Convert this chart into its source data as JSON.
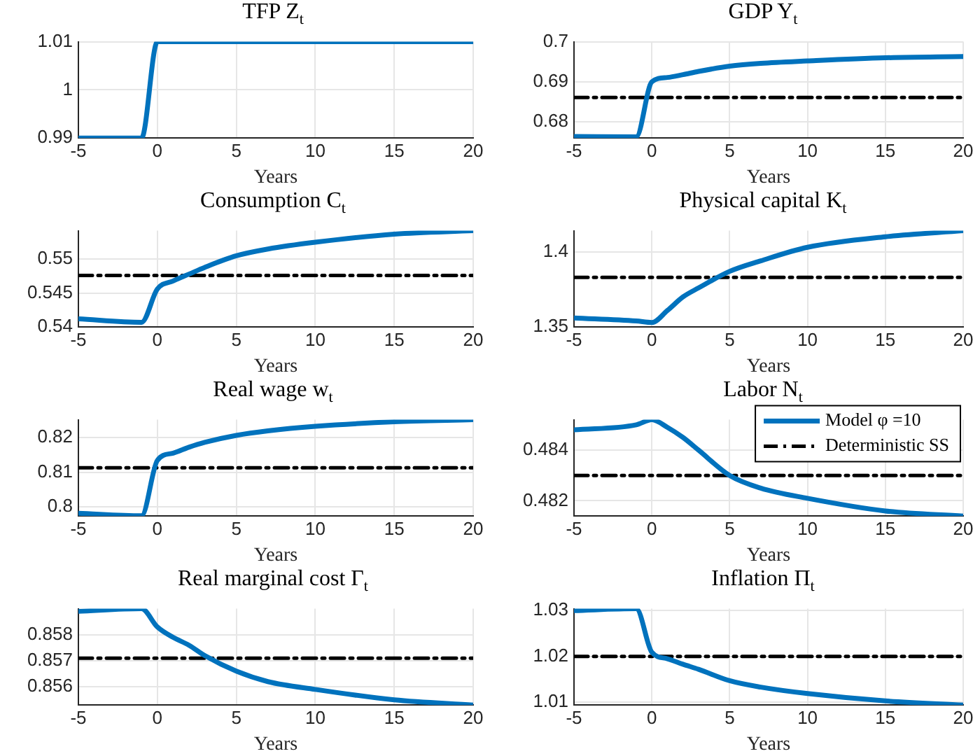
{
  "chart_data": [
    {
      "type": "line",
      "title": "TFP Z$_{t}$",
      "xlabel": "Years",
      "x": [
        -5,
        -1,
        0,
        1,
        2,
        3,
        5,
        7,
        10,
        15,
        20
      ],
      "xlim": [
        -5,
        20
      ],
      "xticks": [
        -5,
        0,
        5,
        10,
        15,
        20
      ],
      "ylim": [
        0.99,
        1.01
      ],
      "yticks": [
        0.99,
        1,
        1.01
      ],
      "grid": true,
      "series": [
        {
          "color": "#0072bd",
          "line_style": "solid",
          "values": [
            0.99,
            0.99,
            1.01,
            1.01,
            1.01,
            1.01,
            1.01,
            1.01,
            1.01,
            1.01,
            1.01
          ]
        }
      ]
    },
    {
      "type": "line",
      "title": "GDP Y$_{t}$",
      "xlabel": "Years",
      "x": [
        -5,
        -1,
        0,
        1,
        2,
        3,
        5,
        7,
        10,
        15,
        20
      ],
      "xlim": [
        -5,
        20
      ],
      "xticks": [
        -5,
        0,
        5,
        10,
        15,
        20
      ],
      "ylim": [
        0.676,
        0.7
      ],
      "yticks": [
        0.68,
        0.69,
        0.7
      ],
      "grid": true,
      "series": [
        {
          "color": "#0072bd",
          "line_style": "solid",
          "values": [
            0.6764,
            0.6763,
            0.69,
            0.6911,
            0.6918,
            0.6926,
            0.6939,
            0.6946,
            0.6952,
            0.696,
            0.6963
          ]
        },
        {
          "color": "#000000",
          "line_style": "dashed",
          "values": [
            0.6861,
            0.6861,
            0.6861,
            0.6861,
            0.6861,
            0.6861,
            0.6861,
            0.6861,
            0.6861,
            0.6861,
            0.6861
          ]
        }
      ]
    },
    {
      "type": "line",
      "title": "Consumption C$_{t}$",
      "xlabel": "Years",
      "x": [
        -5,
        -1,
        0,
        1,
        2,
        3,
        5,
        7,
        10,
        15,
        20
      ],
      "xlim": [
        -5,
        20
      ],
      "xticks": [
        -5,
        0,
        5,
        10,
        15,
        20
      ],
      "ylim": [
        0.54,
        0.5542
      ],
      "yticks": [
        0.54,
        0.545,
        0.55
      ],
      "grid": true,
      "series": [
        {
          "color": "#0072bd",
          "line_style": "solid",
          "values": [
            0.5412,
            0.5407,
            0.5456,
            0.5468,
            0.5478,
            0.5488,
            0.5505,
            0.5515,
            0.5525,
            0.5537,
            0.5542
          ]
        },
        {
          "color": "#000000",
          "line_style": "dashed",
          "values": [
            0.5476,
            0.5476,
            0.5476,
            0.5476,
            0.5476,
            0.5476,
            0.5476,
            0.5476,
            0.5476,
            0.5476,
            0.5476
          ]
        }
      ]
    },
    {
      "type": "line",
      "title": "Physical capital K$_{t}$",
      "xlabel": "Years",
      "x": [
        -5,
        -1,
        0,
        1,
        2,
        3,
        5,
        7,
        10,
        15,
        20
      ],
      "xlim": [
        -5,
        20
      ],
      "xticks": [
        -5,
        0,
        5,
        10,
        15,
        20
      ],
      "ylim": [
        1.35,
        1.414
      ],
      "yticks": [
        1.35,
        1.4
      ],
      "grid": true,
      "series": [
        {
          "color": "#0072bd",
          "line_style": "solid",
          "values": [
            1.356,
            1.354,
            1.353,
            1.361,
            1.37,
            1.376,
            1.387,
            1.394,
            1.403,
            1.41,
            1.414
          ]
        },
        {
          "color": "#000000",
          "line_style": "dashed",
          "values": [
            1.383,
            1.383,
            1.383,
            1.383,
            1.383,
            1.383,
            1.383,
            1.383,
            1.383,
            1.383,
            1.383
          ]
        }
      ]
    },
    {
      "type": "line",
      "title": "Real wage w$_{t}$",
      "xlabel": "Years",
      "x": [
        -5,
        -1,
        0,
        1,
        2,
        3,
        5,
        7,
        10,
        15,
        20
      ],
      "xlim": [
        -5,
        20
      ],
      "xticks": [
        -5,
        0,
        5,
        10,
        15,
        20
      ],
      "ylim": [
        0.7974,
        0.8251
      ],
      "yticks": [
        0.8,
        0.81,
        0.82
      ],
      "grid": true,
      "series": [
        {
          "color": "#0072bd",
          "line_style": "solid",
          "values": [
            0.7982,
            0.7975,
            0.8134,
            0.8155,
            0.8172,
            0.8186,
            0.8206,
            0.8219,
            0.8232,
            0.8245,
            0.8251
          ]
        },
        {
          "color": "#000000",
          "line_style": "dashed",
          "values": [
            0.8113,
            0.8113,
            0.8113,
            0.8113,
            0.8113,
            0.8113,
            0.8113,
            0.8113,
            0.8113,
            0.8113,
            0.8113
          ]
        }
      ]
    },
    {
      "type": "line",
      "title": "Labor N$_{t}$",
      "xlabel": "Years",
      "x": [
        -5,
        -1,
        0,
        1,
        2,
        3,
        5,
        7,
        10,
        15,
        20
      ],
      "xlim": [
        -5,
        20
      ],
      "xticks": [
        -5,
        0,
        5,
        10,
        15,
        20
      ],
      "ylim": [
        0.4814,
        0.4852
      ],
      "yticks": [
        0.482,
        0.484
      ],
      "grid": true,
      "legend": "top right",
      "series": [
        {
          "name": "Model φ =10",
          "color": "#0072bd",
          "line_style": "solid",
          "values": [
            0.4848,
            0.485,
            0.4852,
            0.4849,
            0.4845,
            0.484,
            0.483,
            0.4825,
            0.4821,
            0.4816,
            0.4814
          ]
        },
        {
          "name": "Deterministic SS",
          "color": "#000000",
          "line_style": "dashed",
          "values": [
            0.483,
            0.483,
            0.483,
            0.483,
            0.483,
            0.483,
            0.483,
            0.483,
            0.483,
            0.483,
            0.483
          ]
        }
      ]
    },
    {
      "type": "line",
      "title": "Real marginal cost Γ$_{t}$",
      "xlabel": "Years",
      "x": [
        -5,
        -1,
        0,
        1,
        2,
        3,
        5,
        7,
        10,
        15,
        20
      ],
      "xlim": [
        -5,
        20
      ],
      "xticks": [
        -5,
        0,
        5,
        10,
        15,
        20
      ],
      "ylim": [
        0.8553,
        0.859
      ],
      "yticks": [
        0.856,
        0.857,
        0.858
      ],
      "grid": true,
      "series": [
        {
          "color": "#0072bd",
          "line_style": "solid",
          "values": [
            0.8589,
            0.859,
            0.8583,
            0.8579,
            0.8576,
            0.8572,
            0.8566,
            0.8562,
            0.8559,
            0.8555,
            0.8553
          ]
        },
        {
          "color": "#000000",
          "line_style": "dashed",
          "values": [
            0.8571,
            0.8571,
            0.8571,
            0.8571,
            0.8571,
            0.8571,
            0.8571,
            0.8571,
            0.8571,
            0.8571,
            0.8571
          ]
        }
      ]
    },
    {
      "type": "line",
      "title": "Inflation Π$_{t}$",
      "xlabel": "Years",
      "x": [
        -5,
        -1,
        0,
        1,
        2,
        3,
        5,
        7,
        10,
        15,
        20
      ],
      "xlim": [
        -5,
        20
      ],
      "xticks": [
        -5,
        0,
        5,
        10,
        15,
        20
      ],
      "ylim": [
        1.0094,
        1.0304
      ],
      "yticks": [
        1.01,
        1.02,
        1.03
      ],
      "grid": true,
      "series": [
        {
          "color": "#0072bd",
          "line_style": "solid",
          "values": [
            1.03,
            1.0304,
            1.0209,
            1.0195,
            1.0183,
            1.0172,
            1.0147,
            1.0133,
            1.0119,
            1.0103,
            1.0094
          ]
        },
        {
          "color": "#000000",
          "line_style": "dashed",
          "values": [
            1.02,
            1.02,
            1.02,
            1.02,
            1.02,
            1.02,
            1.02,
            1.02,
            1.02,
            1.02,
            1.02
          ]
        }
      ]
    }
  ]
}
